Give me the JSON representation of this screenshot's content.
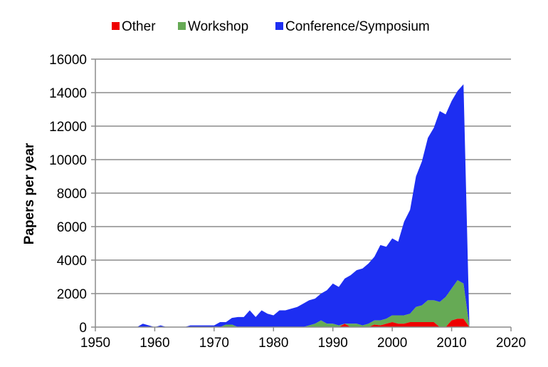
{
  "chart_data": {
    "type": "area",
    "stacked": true,
    "title": "",
    "xlabel": "",
    "ylabel": "Papers per year",
    "xlim": [
      1950,
      2020
    ],
    "ylim": [
      0,
      16000
    ],
    "x_ticks": [
      1950,
      1960,
      1970,
      1980,
      1990,
      2000,
      2010,
      2020
    ],
    "y_ticks": [
      0,
      2000,
      4000,
      6000,
      8000,
      10000,
      12000,
      14000,
      16000
    ],
    "grid": "horizontal",
    "legend_position": "top",
    "years": [
      1957,
      1958,
      1959,
      1960,
      1961,
      1962,
      1963,
      1964,
      1965,
      1966,
      1967,
      1968,
      1969,
      1970,
      1971,
      1972,
      1973,
      1974,
      1975,
      1976,
      1977,
      1978,
      1979,
      1980,
      1981,
      1982,
      1983,
      1984,
      1985,
      1986,
      1987,
      1988,
      1989,
      1990,
      1991,
      1992,
      1993,
      1994,
      1995,
      1996,
      1997,
      1998,
      1999,
      2000,
      2001,
      2002,
      2003,
      2004,
      2005,
      2006,
      2007,
      2008,
      2009,
      2010,
      2011,
      2012,
      2013
    ],
    "series": [
      {
        "name": "Other",
        "color": "#ee0000",
        "values": [
          0,
          0,
          0,
          0,
          0,
          0,
          0,
          0,
          0,
          0,
          0,
          0,
          0,
          0,
          0,
          0,
          0,
          0,
          0,
          0,
          0,
          0,
          0,
          0,
          0,
          0,
          0,
          0,
          0,
          0,
          0,
          0,
          0,
          0,
          0,
          200,
          0,
          0,
          0,
          0,
          150,
          100,
          200,
          300,
          200,
          200,
          300,
          300,
          300,
          300,
          300,
          0,
          0,
          400,
          500,
          500,
          0
        ]
      },
      {
        "name": "Workshop",
        "color": "#66aa55",
        "values": [
          0,
          0,
          0,
          0,
          0,
          0,
          0,
          0,
          0,
          0,
          0,
          0,
          0,
          0,
          0,
          150,
          150,
          0,
          0,
          0,
          0,
          0,
          0,
          0,
          0,
          0,
          0,
          0,
          0,
          100,
          200,
          400,
          200,
          200,
          100,
          0,
          200,
          200,
          100,
          200,
          250,
          300,
          300,
          400,
          500,
          500,
          500,
          900,
          1000,
          1300,
          1300,
          1500,
          1800,
          1900,
          2300,
          2100,
          0
        ]
      },
      {
        "name": "Conference/Symposium",
        "color": "#1d2ef2",
        "values": [
          0,
          200,
          100,
          0,
          100,
          0,
          0,
          0,
          0,
          100,
          100,
          100,
          100,
          100,
          300,
          150,
          400,
          600,
          600,
          1000,
          600,
          1000,
          800,
          700,
          1000,
          1000,
          1100,
          1200,
          1400,
          1500,
          1500,
          1600,
          2000,
          2400,
          2300,
          2700,
          2900,
          3200,
          3400,
          3600,
          3800,
          4500,
          4300,
          4600,
          4400,
          5600,
          6200,
          7800,
          8600,
          9700,
          10300,
          11400,
          10900,
          11200,
          11300,
          11900,
          0
        ]
      }
    ]
  }
}
